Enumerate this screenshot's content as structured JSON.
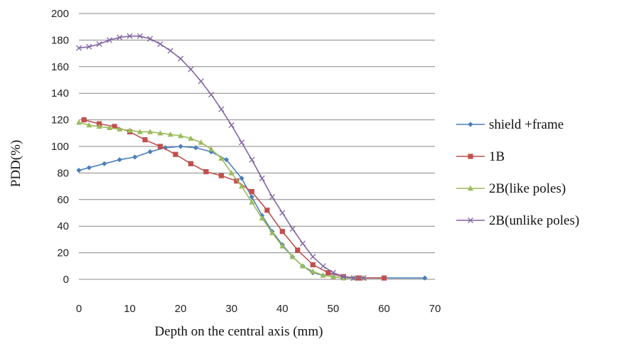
{
  "chart_data": {
    "type": "line",
    "title": "",
    "xlabel": "Depth on the central axis (mm)",
    "ylabel": "PDD(%)",
    "xlim": [
      0,
      70
    ],
    "ylim": [
      0,
      200
    ],
    "x_ticks": [
      0,
      10,
      20,
      30,
      40,
      50,
      60,
      70
    ],
    "y_ticks": [
      0,
      20,
      40,
      60,
      80,
      100,
      120,
      140,
      160,
      180,
      200
    ],
    "grid": "horizontal",
    "legend_position": "right",
    "series": [
      {
        "name": "shield +frame",
        "color": "#4a7ebb",
        "marker": "diamond",
        "x": [
          0,
          2,
          5,
          8,
          11,
          14,
          17,
          20,
          23,
          26,
          29,
          32,
          34,
          36,
          38,
          40,
          42,
          44,
          46,
          48,
          50,
          52,
          55,
          68
        ],
        "y": [
          82,
          84,
          87,
          90,
          92,
          96,
          99,
          100,
          99,
          96,
          90,
          76,
          62,
          48,
          36,
          26,
          17,
          10,
          5,
          3,
          2,
          1,
          1,
          1
        ]
      },
      {
        "name": "1B",
        "color": "#c0504d",
        "marker": "square",
        "x": [
          1,
          4,
          7,
          10,
          13,
          16,
          19,
          22,
          25,
          28,
          31,
          34,
          37,
          40,
          43,
          46,
          49,
          52,
          55,
          60
        ],
        "y": [
          120,
          117,
          115,
          111,
          105,
          100,
          94,
          87,
          81,
          78,
          74,
          66,
          52,
          36,
          22,
          11,
          5,
          2,
          1,
          1
        ]
      },
      {
        "name": "2B(like poles)",
        "color": "#9bbb59",
        "marker": "triangle",
        "x": [
          0,
          2,
          4,
          6,
          8,
          10,
          12,
          14,
          16,
          18,
          20,
          22,
          24,
          26,
          28,
          30,
          32,
          34,
          36,
          38,
          40,
          42,
          44,
          46,
          48,
          50,
          52,
          54,
          56
        ],
        "y": [
          118,
          116,
          115,
          114,
          113,
          112,
          111,
          111,
          110,
          109,
          108,
          106,
          103,
          98,
          91,
          80,
          70,
          58,
          46,
          35,
          25,
          17,
          10,
          6,
          3,
          2,
          1,
          1,
          1
        ]
      },
      {
        "name": "2B(unlike poles)",
        "color": "#8064a2",
        "marker": "x",
        "x": [
          0,
          2,
          4,
          6,
          8,
          10,
          12,
          14,
          16,
          18,
          20,
          22,
          24,
          26,
          28,
          30,
          32,
          34,
          36,
          38,
          40,
          42,
          44,
          46,
          48,
          50,
          52,
          54,
          56
        ],
        "y": [
          174,
          175,
          177,
          180,
          182,
          183,
          183,
          181,
          177,
          172,
          166,
          158,
          149,
          139,
          128,
          116,
          103,
          90,
          76,
          62,
          50,
          38,
          27,
          17,
          10,
          5,
          2,
          1,
          1
        ]
      }
    ]
  }
}
